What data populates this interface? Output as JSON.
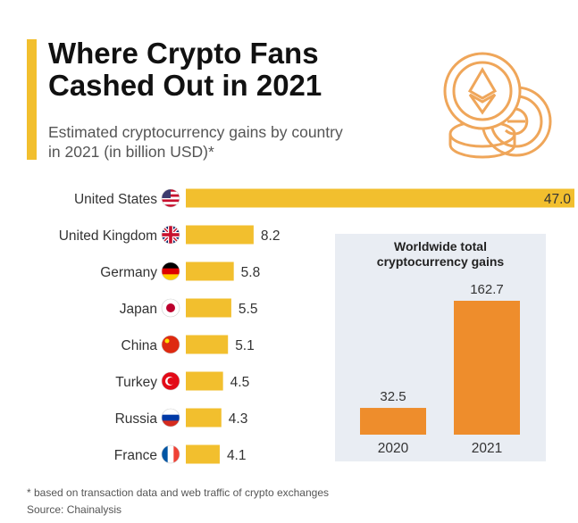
{
  "header": {
    "title": "Where Crypto Fans\nCashed Out in 2021",
    "subtitle": "Estimated cryptocurrency gains by country\nin 2021 (in billion USD)*"
  },
  "colors": {
    "accent": "#f2bf2e",
    "bar_country": "#f2bf2e",
    "bar_world": "#ee8d2c",
    "panel_bg": "#e9edf3",
    "coin_stroke": "#efa65a"
  },
  "decoration": {
    "coins_icon": "crypto-coins-icon"
  },
  "chart_data": [
    {
      "type": "bar",
      "orientation": "horizontal",
      "title": "",
      "categories": [
        "United States",
        "United Kingdom",
        "Germany",
        "Japan",
        "China",
        "Turkey",
        "Russia",
        "France"
      ],
      "values": [
        47.0,
        8.2,
        5.8,
        5.5,
        5.1,
        4.5,
        4.3,
        4.1
      ],
      "value_labels": [
        "47.0",
        "8.2",
        "5.8",
        "5.5",
        "5.1",
        "4.5",
        "4.3",
        "4.1"
      ],
      "flags": [
        "us-flag-icon",
        "uk-flag-icon",
        "germany-flag-icon",
        "japan-flag-icon",
        "china-flag-icon",
        "turkey-flag-icon",
        "russia-flag-icon",
        "france-flag-icon"
      ],
      "xlim": [
        0,
        47
      ],
      "grid": false,
      "legend": "none"
    },
    {
      "type": "bar",
      "orientation": "vertical",
      "title": "Worldwide total\ncryptocurrency gains",
      "categories": [
        "2020",
        "2021"
      ],
      "values": [
        32.5,
        162.7
      ],
      "value_labels": [
        "32.5",
        "162.7"
      ],
      "ylim": [
        0,
        162.7
      ],
      "grid": false,
      "legend": "none"
    }
  ],
  "footer": {
    "footnote": "* based on transaction data and web traffic of crypto exchanges",
    "source": "Source: Chainalysis"
  }
}
